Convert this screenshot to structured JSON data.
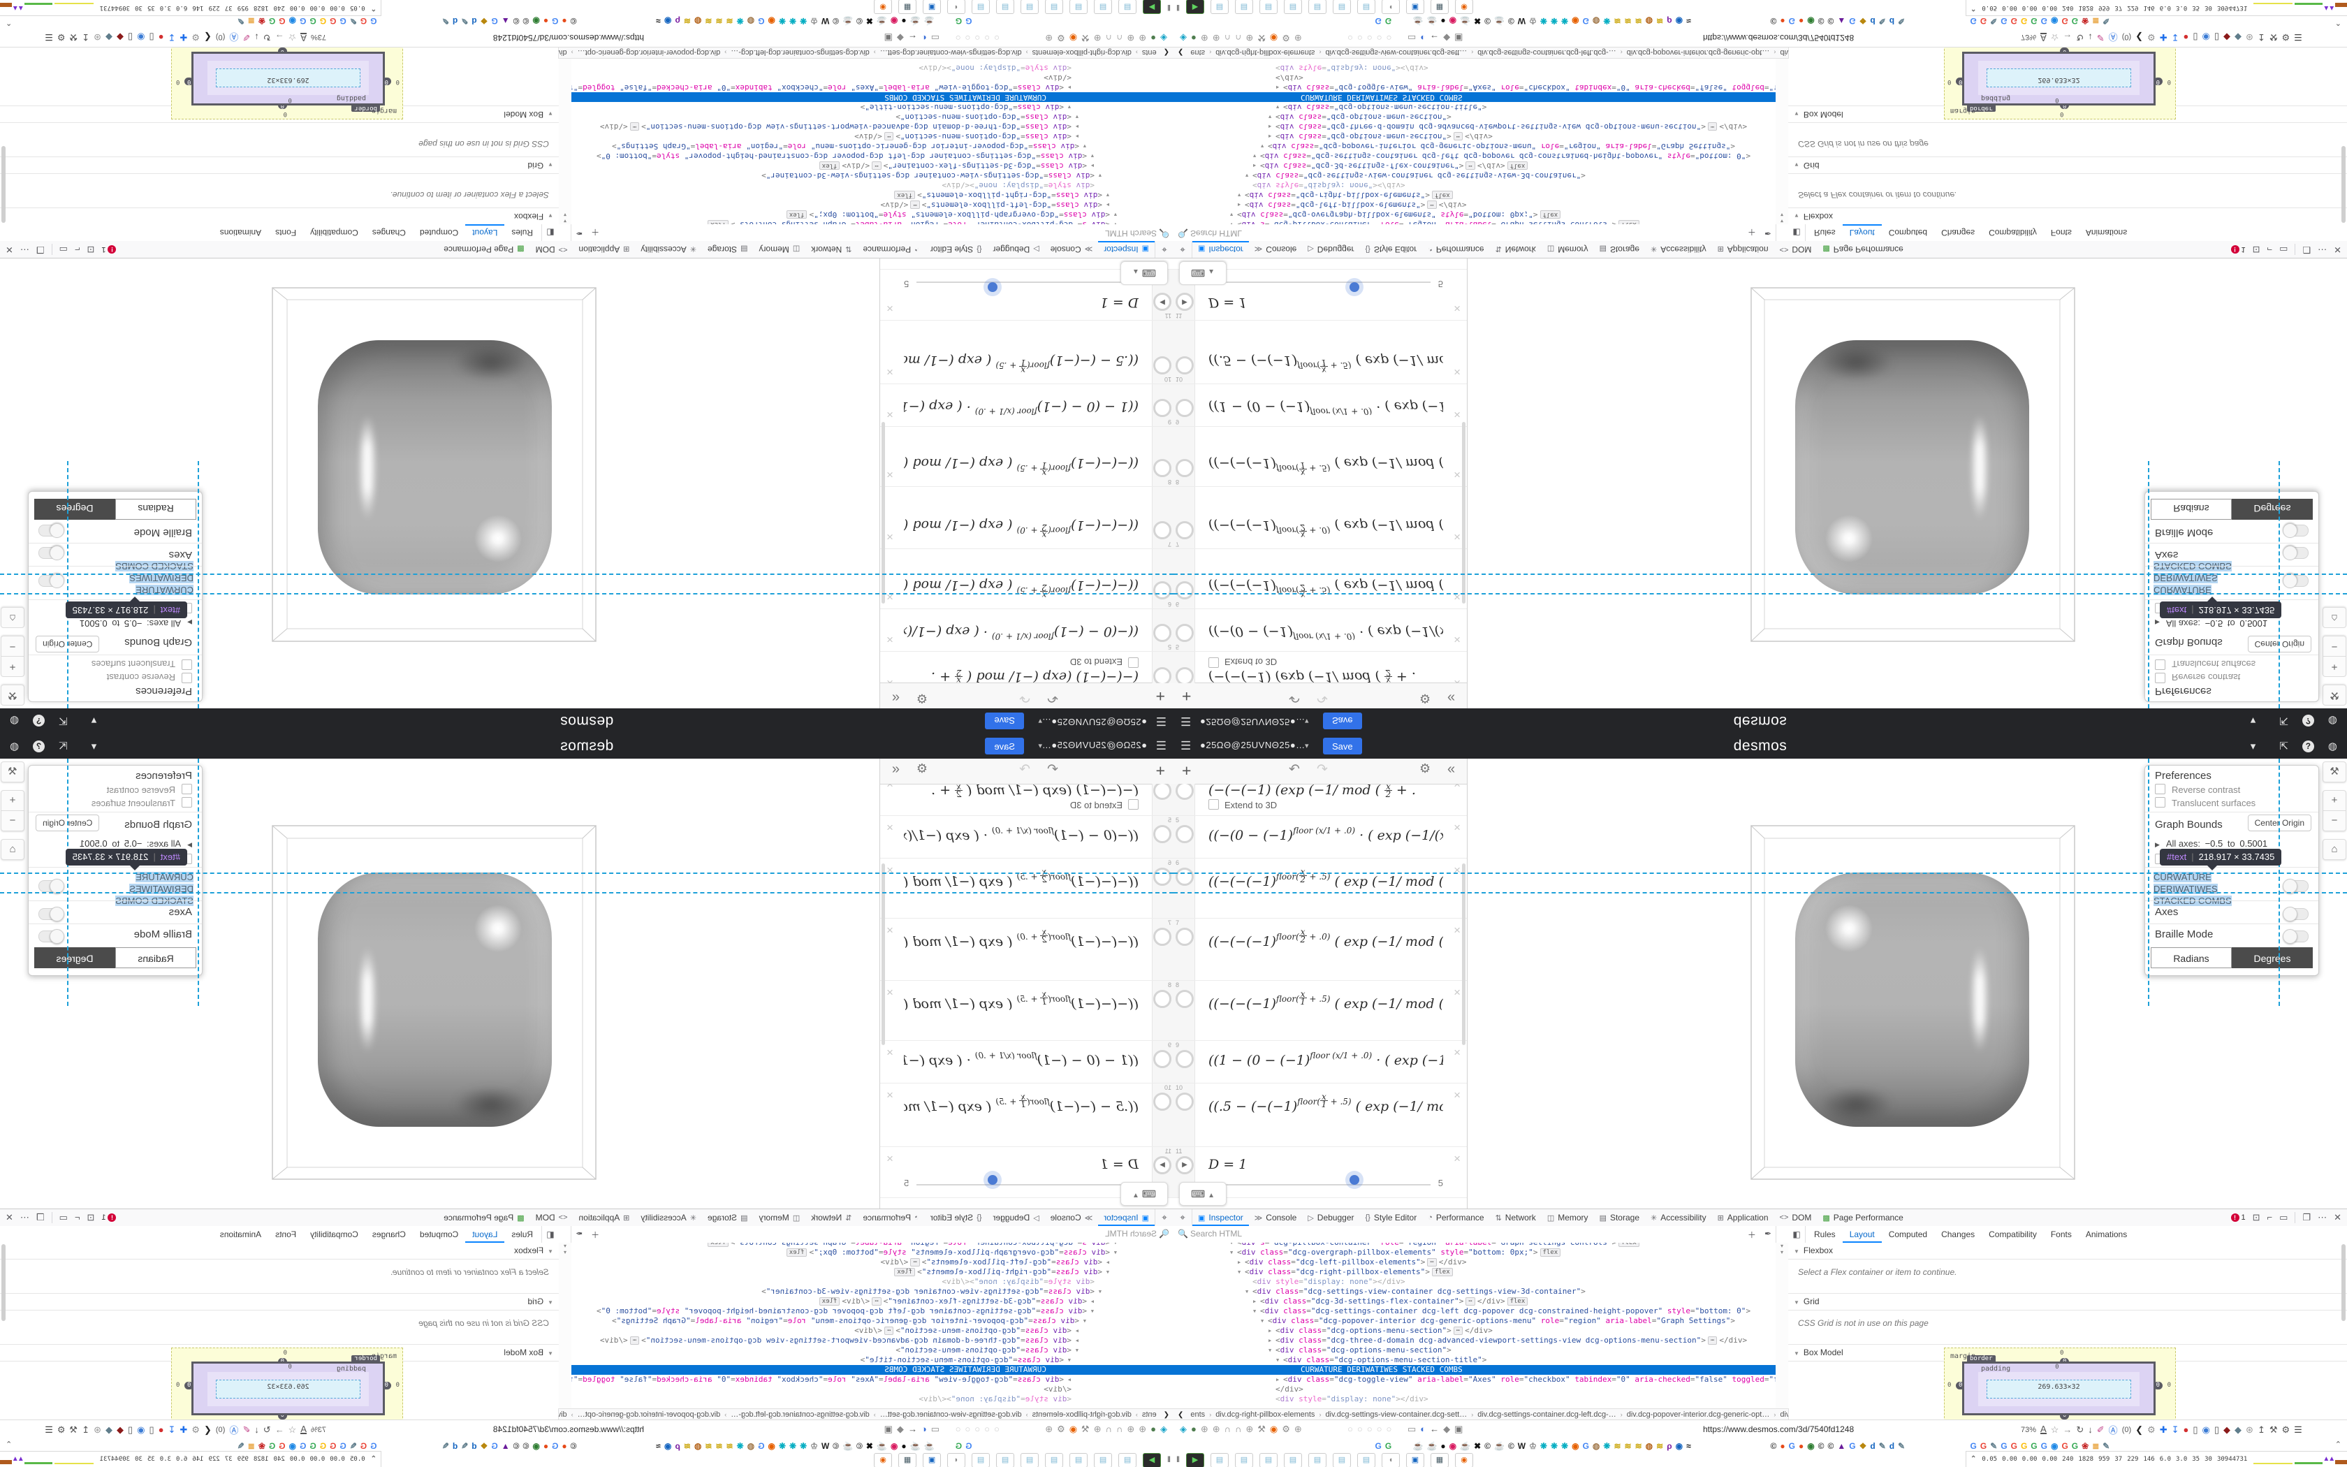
{
  "navbar": {
    "account": "●25ΩΘ@25UVNΘ25●…",
    "save": "Save",
    "brand": "desmos",
    "burger": "☰",
    "caret": "▾",
    "share": "⇱",
    "help": "?",
    "globe": "◍"
  },
  "expr_toolbar": {
    "add": "+",
    "undo": "↶",
    "redo": "↷",
    "gear": "⚙",
    "collapse": "«"
  },
  "expressions": {
    "items": [
      {
        "n": "4",
        "clip": true,
        "pre": "(−(−(−1)",
        "sup": "",
        "post": "  (exp (−1/ mod ( {x/2} + .",
        "extend": "Extend to 3D",
        "h": 61
      },
      {
        "n": "5",
        "pre": "((−(0 − (−1)",
        "sup": "floor (x/1 + .0)",
        "post": " · ( exp (−1/(x − (1)*",
        "h": 60
      },
      {
        "n": "6",
        "pre": "((−(−(−1)",
        "sup": "floor({x/2} + .5)",
        "post": " ( exp (−1/ mod ( {x/2} +",
        "h": 85
      },
      {
        "n": "7",
        "pre": "((−(−(−1)",
        "sup": "floor({x/2} + .0)",
        "post": " ( exp (−1/ mod ( {x/2} +",
        "h": 88
      },
      {
        "n": "8",
        "pre": "((−(−(−1)",
        "sup": "floor({x/1} + .5)",
        "post": " ( exp (−1/ mod ( {x/1} +",
        "h": 85
      },
      {
        "n": "9",
        "pre": "((1 − (0 − (−1)",
        "sup": "floor (x/1 + .0)",
        "post": " · ( exp (−1/(x − (1",
        "h": 60
      },
      {
        "n": "10",
        "pre": "((.5 − (−(−1)",
        "sup": "floor({x/1} + .5)",
        "post": " ( exp (−1/ mod ( {x/1}",
        "h": 90
      },
      {
        "n": "11",
        "plain": "D = 1",
        "play": true,
        "slider": true,
        "h": 72
      }
    ],
    "slider_max": "5",
    "keyboard": "⌨",
    "keyboard_up": "▲"
  },
  "settings": {
    "preferences": "Preferences",
    "reverse": "Reverse contrast",
    "translucent": "Translucent surfaces",
    "bounds": "Graph Bounds",
    "center": "Center Origin",
    "axes_all": "All axes:",
    "from": "−0.5",
    "to_word": "to",
    "to": "0.5001",
    "title_l1": "CURWATURE DERIWATIWES",
    "title_l2": "STACKED COMBS",
    "axes": "Axes",
    "braille": "Braille Mode",
    "radians": "Radians",
    "degrees": "Degrees",
    "wrench": "⚒",
    "plus": "+",
    "minus": "−",
    "home": "⌂"
  },
  "tooltip": {
    "tag": "#text",
    "dims": "218.917 × 33.7435"
  },
  "devtools": {
    "picker": "⌖",
    "tabs": [
      {
        "i": "▣",
        "t": "Inspector",
        "sel": 1
      },
      {
        "i": "≫",
        "t": "Console"
      },
      {
        "i": "▷",
        "t": "Debugger"
      },
      {
        "i": "{}",
        "t": "Style Editor"
      },
      {
        "i": "◔",
        "t": "Performance"
      },
      {
        "i": "⇅",
        "t": "Network"
      },
      {
        "i": "◫",
        "t": "Memory"
      },
      {
        "i": "▤",
        "t": "Storage"
      },
      {
        "i": "✳",
        "t": "Accessibility"
      },
      {
        "i": "⊞",
        "t": "Application"
      },
      {
        "i": "<>",
        "t": "DOM"
      },
      {
        "i": "▩",
        "t": "Page Performance",
        "gi": 1
      }
    ],
    "errors": "1",
    "right_icons": [
      {
        "t": "⊡"
      },
      {
        "t": "⌐"
      },
      {
        "t": "▭"
      }
    ],
    "right_icons2": [
      {
        "t": "❐"
      },
      {
        "t": "⋯"
      },
      {
        "t": "✕"
      }
    ],
    "search_placeholder": "Search HTML",
    "search_add": "＋",
    "search_pick": "✒",
    "scroll_arrow": "▾"
  },
  "markup": {
    "rows": [
      {
        "lvl": 0,
        "a": "▼",
        "attrs": [
          [
            "s",
            "dcg-pillbox-container"
          ],
          [
            "role",
            "region"
          ],
          [
            "aria-label",
            "Graph settings controls"
          ]
        ],
        "badge": "flex",
        "clip": "t"
      },
      {
        "lvl": 0,
        "a": "▼",
        "attrs": [
          [
            "class",
            "dcg-overgraph-pillbox-elements"
          ],
          [
            "style",
            "bottom: 0px;"
          ]
        ],
        "badge": "flex"
      },
      {
        "lvl": 1,
        "a": "▶",
        "attrs": [
          [
            "class",
            "dcg-left-pillbox-elements"
          ]
        ],
        "dots": true
      },
      {
        "lvl": 1,
        "a": "▼",
        "attrs": [
          [
            "class",
            "dcg-right-pillbox-elements"
          ]
        ],
        "badge": "flex"
      },
      {
        "lvl": 2,
        "attrs": [
          [
            "style",
            "display: none"
          ]
        ],
        "selfclose": true,
        "dim": true
      },
      {
        "lvl": 2,
        "a": "▼",
        "attrs": [
          [
            "class",
            "dcg-settings-view-container dcg-settings-view-3d-container"
          ]
        ]
      },
      {
        "lvl": 3,
        "a": "▶",
        "attrs": [
          [
            "class",
            "dcg-3d-settings-flex-container"
          ]
        ],
        "dots": true,
        "badge": "flex"
      },
      {
        "lvl": 3,
        "a": "▼",
        "attrs": [
          [
            "class",
            "dcg-settings-container dcg-left dcg-popover dcg-constrained-height-popover"
          ],
          [
            "style",
            "bottom: 0"
          ]
        ]
      },
      {
        "lvl": 4,
        "a": "▼",
        "attrs": [
          [
            "class",
            "dcg-popover-interior dcg-generic-options-menu"
          ],
          [
            "role",
            "region"
          ],
          [
            "aria-label",
            "Graph Settings"
          ]
        ]
      },
      {
        "lvl": 5,
        "a": "▶",
        "attrs": [
          [
            "class",
            "dcg-options-menu-section"
          ]
        ],
        "dots": true
      },
      {
        "lvl": 5,
        "a": "▶",
        "attrs": [
          [
            "class",
            "dcg-three-d-domain dcg-advanced-viewport-settings-view dcg-options-menu-section"
          ]
        ],
        "dots": true
      },
      {
        "lvl": 5,
        "a": "▼",
        "attrs": [
          [
            "class",
            "dcg-options-menu-section"
          ]
        ]
      },
      {
        "lvl": 6,
        "a": "▼",
        "attrs": [
          [
            "class",
            "dcg-options-menu-section-title"
          ]
        ]
      },
      {
        "lvl": 7,
        "sel": "CURWATURE DERIWATIWES STACKED COMBS"
      },
      {
        "lvl": 6,
        "a": "▶",
        "attrs": [
          [
            "class",
            "dcg-toggle-view"
          ],
          [
            "aria-label",
            "Axes"
          ],
          [
            "role",
            "checkbox"
          ],
          [
            "tabindex",
            "0"
          ],
          [
            "aria-checked",
            "false"
          ],
          [
            "toggled",
            "false"
          ],
          [
            "ontap",
            ""
          ]
        ],
        "dots": true
      },
      {
        "lvl": 5,
        "close": true
      },
      {
        "lvl": 5,
        "attrs": [
          [
            "style",
            "display: none"
          ]
        ],
        "selfclose": true,
        "dim": true,
        "clip": "b"
      }
    ],
    "crumbs": [
      "ents",
      "div.dcg-right-pillbox-elements",
      "div.dcg-settings-view-container.dcg-sett…",
      "div.dcg-settings-container.dcg-left.dcg-…",
      "div.dcg-popover-interior.dcg-generic-opt…",
      "div.d"
    ],
    "crumb_prev": "❮",
    "crumb_next": "❯"
  },
  "sidebar": {
    "toggle": "◧",
    "tabs": [
      {
        "t": "Rules"
      },
      {
        "t": "Layout",
        "sel": 1
      },
      {
        "t": "Computed"
      },
      {
        "t": "Changes"
      },
      {
        "t": "Compatibility"
      },
      {
        "t": "Fonts"
      },
      {
        "t": "Animations"
      }
    ],
    "flexbox": "Flexbox",
    "flex_empty": "Select a Flex container or item to continue.",
    "grid": "Grid",
    "grid_empty": "CSS Grid is not in use on this page",
    "boxmodel": "Box Model",
    "tri": "▼"
  },
  "boxmodel": {
    "margin": "margin",
    "border": "border",
    "padding": "padding",
    "content": "269.633×32",
    "zero": "0"
  },
  "url": {
    "href": "https://www.desmos.com/3d/7540fd1248",
    "zoom": "73%"
  },
  "urlrow": {
    "left": [
      [
        "◈",
        "#15a3c7"
      ],
      [
        "●",
        "#4f7d4f"
      ],
      [
        "⊕",
        "#999"
      ],
      [
        "⊕",
        "#999"
      ],
      [
        "∩",
        "#8a8a8a"
      ],
      [
        "∩",
        "#8a8a8a"
      ],
      [
        "⊕",
        "#999"
      ],
      [
        "⚒",
        "#8a8a8a"
      ],
      [
        "◉",
        "#e66000"
      ],
      [
        "⚙",
        "#8a8a8a"
      ],
      [
        "⊕",
        "#999"
      ]
    ],
    "dim": [
      [
        "○",
        "#cecece"
      ],
      [
        "○",
        "#cecece"
      ],
      [
        "○",
        "#cecece"
      ],
      [
        "○",
        "#cecece"
      ],
      [
        "○",
        "#cecece"
      ]
    ],
    "mid": [
      [
        "▭",
        "#8a8a8a"
      ],
      [
        "◐",
        "#3a6fd8"
      ],
      [
        "←",
        "#555"
      ],
      [
        "◆",
        "#8a8a8a"
      ],
      [
        "▣",
        "#777"
      ]
    ],
    "right": [
      [
        "A",
        "#555",
        "u"
      ],
      [
        "☆",
        "#8a8a8a"
      ],
      [
        "→",
        "#8a8a8a"
      ],
      [
        "↻",
        "#555"
      ],
      [
        "↓",
        "#555"
      ],
      [
        "✐",
        "#c2458a"
      ],
      [
        "Ⓐ",
        "#2a6fdb"
      ],
      [
        "(0)",
        "#555",
        "txt"
      ],
      [
        "❮",
        "#222"
      ],
      [
        "⚙",
        "#8f8f8f"
      ],
      [
        "✚",
        "#1f6feb"
      ],
      [
        "↧",
        "#1f6feb"
      ],
      [
        "●",
        "#d32f2f"
      ],
      [
        "▯",
        "#555"
      ],
      [
        "◉",
        "#3a7bd5"
      ],
      [
        "▯",
        "#555"
      ],
      [
        "◆",
        "#8b1a1a"
      ],
      [
        "◆",
        "#607d8b"
      ],
      [
        "⊛",
        "#9a9a9a"
      ],
      [
        "↥",
        "#555"
      ],
      [
        "⚒",
        "#555"
      ],
      [
        "⚙",
        "#555"
      ],
      [
        "☰",
        "#444"
      ]
    ]
  },
  "bookmarks": {
    "lead": [
      [
        "G",
        "#4285f4"
      ],
      [
        "G",
        "#34a853"
      ]
    ],
    "a": [
      [
        "☕",
        "#2e7d32"
      ],
      [
        "☕",
        "#2e7d32"
      ],
      [
        "●",
        "#111"
      ],
      [
        "◉",
        "#d81b60"
      ],
      [
        "☕",
        "#2e7d32"
      ],
      [
        "✖",
        "#111"
      ],
      [
        "©",
        "#333"
      ],
      [
        "☕",
        "#2e7d32"
      ],
      [
        "©",
        "#333"
      ],
      [
        "W",
        "#222"
      ],
      [
        "♔",
        "#888"
      ],
      [
        "❋",
        "#00acc1"
      ],
      [
        "❋",
        "#00acc1"
      ],
      [
        "❋",
        "#00acc1"
      ],
      [
        "◉",
        "#e66000"
      ],
      [
        "G",
        "#4285f4"
      ],
      [
        "◍",
        "#a07648"
      ],
      [
        "❋",
        "#00acc1"
      ],
      [
        "≋",
        "#c8a200"
      ],
      [
        "≋",
        "#c8a200"
      ],
      [
        "≋",
        "#c8a200"
      ],
      [
        "◍",
        "#b5651d"
      ],
      [
        "≋",
        "#c8a200"
      ],
      [
        "ρ",
        "#7b1fa2"
      ],
      [
        "◉",
        "#1565c0"
      ],
      [
        "≈",
        "#111"
      ]
    ],
    "b": [
      [
        "©",
        "#333"
      ],
      [
        "●",
        "#e64a19"
      ],
      [
        "G",
        "#4285f4"
      ],
      [
        "●",
        "#e64a19"
      ],
      [
        "◉",
        "#2e7d32"
      ],
      [
        "©",
        "#333"
      ],
      [
        "©",
        "#333"
      ],
      [
        "▲",
        "#6a1b9a"
      ],
      [
        "G",
        "#4285f4"
      ],
      [
        "❖",
        "#b8860b"
      ],
      [
        "d",
        "#1565c0"
      ],
      [
        "✎",
        "#607d8b"
      ],
      [
        "d",
        "#1565c0"
      ],
      [
        "✎",
        "#607d8b"
      ]
    ],
    "c": [
      [
        "G",
        "#4285f4"
      ],
      [
        "G",
        "#ea4335"
      ],
      [
        "✎",
        "#607d8b"
      ],
      [
        "G",
        "#4285f4"
      ],
      [
        "G",
        "#ea4335"
      ],
      [
        "G",
        "#fbbc05"
      ],
      [
        "G",
        "#34a853"
      ],
      [
        "G",
        "#4285f4"
      ],
      [
        "◉",
        "#1e88e5"
      ],
      [
        "G",
        "#ea4335"
      ],
      [
        "G",
        "#34a853"
      ],
      [
        "❀",
        "#c62828"
      ],
      [
        "≣",
        "#e8a33d"
      ],
      [
        "✎",
        "#607d8b"
      ]
    ],
    "caret": "⌃"
  },
  "tabstrip": {
    "grip": "‖",
    "tiles": [
      {
        "t": "▶",
        "c": "#5fd35f",
        "dark": 1
      },
      {
        "t": "▤",
        "c": "#7fb8d4"
      },
      {
        "t": "▤",
        "c": "#7fb8d4"
      },
      {
        "t": "▤",
        "c": "#7fb8d4"
      },
      {
        "t": "▤",
        "c": "#7fb8d4"
      },
      {
        "t": "▤",
        "c": "#7fb8d4"
      },
      {
        "t": "▤",
        "c": "#7fb8d4"
      },
      {
        "t": "▤",
        "c": "#7fb8d4"
      },
      {
        "t": "◖",
        "c": "#888"
      },
      {
        "t": "▣",
        "c": "#1565c0"
      },
      {
        "t": "▦",
        "c": "#455a64"
      },
      {
        "t": "◉",
        "c": "#e66000"
      }
    ]
  },
  "perf": {
    "home": "⌃",
    "values": [
      "0.05",
      "0.00",
      "0.00",
      "0.00",
      "240",
      "1828",
      "959",
      "37",
      "229",
      "146",
      "6.0",
      "3.0",
      "35",
      "30",
      "30944731"
    ]
  }
}
